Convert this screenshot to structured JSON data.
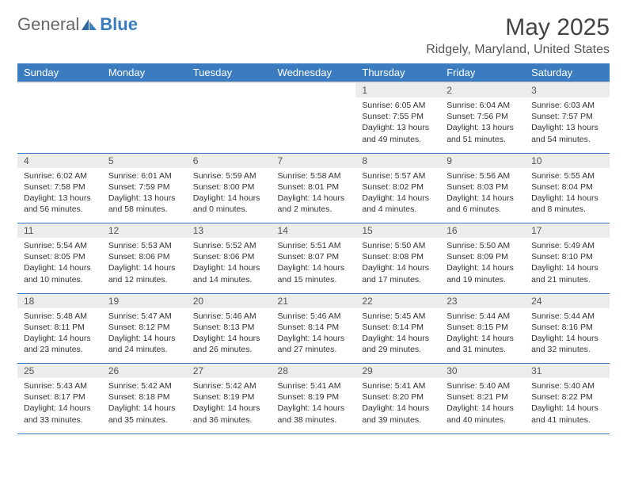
{
  "logo": {
    "general": "General",
    "blue": "Blue"
  },
  "title": "May 2025",
  "location": "Ridgely, Maryland, United States",
  "day_headers": [
    "Sunday",
    "Monday",
    "Tuesday",
    "Wednesday",
    "Thursday",
    "Friday",
    "Saturday"
  ],
  "colors": {
    "header_bg": "#3a7cbf",
    "header_fg": "#ffffff",
    "daynum_bg": "#ececec",
    "row_border": "#3a7cbf",
    "text": "#333333",
    "background": "#ffffff"
  },
  "weeks": [
    {
      "nums": [
        "",
        "",
        "",
        "",
        "1",
        "2",
        "3"
      ],
      "cells": [
        null,
        null,
        null,
        null,
        {
          "sunrise": "6:05 AM",
          "sunset": "7:55 PM",
          "dl_h": 13,
          "dl_m": 49
        },
        {
          "sunrise": "6:04 AM",
          "sunset": "7:56 PM",
          "dl_h": 13,
          "dl_m": 51
        },
        {
          "sunrise": "6:03 AM",
          "sunset": "7:57 PM",
          "dl_h": 13,
          "dl_m": 54
        }
      ]
    },
    {
      "nums": [
        "4",
        "5",
        "6",
        "7",
        "8",
        "9",
        "10"
      ],
      "cells": [
        {
          "sunrise": "6:02 AM",
          "sunset": "7:58 PM",
          "dl_h": 13,
          "dl_m": 56
        },
        {
          "sunrise": "6:01 AM",
          "sunset": "7:59 PM",
          "dl_h": 13,
          "dl_m": 58
        },
        {
          "sunrise": "5:59 AM",
          "sunset": "8:00 PM",
          "dl_h": 14,
          "dl_m": 0
        },
        {
          "sunrise": "5:58 AM",
          "sunset": "8:01 PM",
          "dl_h": 14,
          "dl_m": 2
        },
        {
          "sunrise": "5:57 AM",
          "sunset": "8:02 PM",
          "dl_h": 14,
          "dl_m": 4
        },
        {
          "sunrise": "5:56 AM",
          "sunset": "8:03 PM",
          "dl_h": 14,
          "dl_m": 6
        },
        {
          "sunrise": "5:55 AM",
          "sunset": "8:04 PM",
          "dl_h": 14,
          "dl_m": 8
        }
      ]
    },
    {
      "nums": [
        "11",
        "12",
        "13",
        "14",
        "15",
        "16",
        "17"
      ],
      "cells": [
        {
          "sunrise": "5:54 AM",
          "sunset": "8:05 PM",
          "dl_h": 14,
          "dl_m": 10
        },
        {
          "sunrise": "5:53 AM",
          "sunset": "8:06 PM",
          "dl_h": 14,
          "dl_m": 12
        },
        {
          "sunrise": "5:52 AM",
          "sunset": "8:06 PM",
          "dl_h": 14,
          "dl_m": 14
        },
        {
          "sunrise": "5:51 AM",
          "sunset": "8:07 PM",
          "dl_h": 14,
          "dl_m": 15
        },
        {
          "sunrise": "5:50 AM",
          "sunset": "8:08 PM",
          "dl_h": 14,
          "dl_m": 17
        },
        {
          "sunrise": "5:50 AM",
          "sunset": "8:09 PM",
          "dl_h": 14,
          "dl_m": 19
        },
        {
          "sunrise": "5:49 AM",
          "sunset": "8:10 PM",
          "dl_h": 14,
          "dl_m": 21
        }
      ]
    },
    {
      "nums": [
        "18",
        "19",
        "20",
        "21",
        "22",
        "23",
        "24"
      ],
      "cells": [
        {
          "sunrise": "5:48 AM",
          "sunset": "8:11 PM",
          "dl_h": 14,
          "dl_m": 23
        },
        {
          "sunrise": "5:47 AM",
          "sunset": "8:12 PM",
          "dl_h": 14,
          "dl_m": 24
        },
        {
          "sunrise": "5:46 AM",
          "sunset": "8:13 PM",
          "dl_h": 14,
          "dl_m": 26
        },
        {
          "sunrise": "5:46 AM",
          "sunset": "8:14 PM",
          "dl_h": 14,
          "dl_m": 27
        },
        {
          "sunrise": "5:45 AM",
          "sunset": "8:14 PM",
          "dl_h": 14,
          "dl_m": 29
        },
        {
          "sunrise": "5:44 AM",
          "sunset": "8:15 PM",
          "dl_h": 14,
          "dl_m": 31
        },
        {
          "sunrise": "5:44 AM",
          "sunset": "8:16 PM",
          "dl_h": 14,
          "dl_m": 32
        }
      ]
    },
    {
      "nums": [
        "25",
        "26",
        "27",
        "28",
        "29",
        "30",
        "31"
      ],
      "cells": [
        {
          "sunrise": "5:43 AM",
          "sunset": "8:17 PM",
          "dl_h": 14,
          "dl_m": 33
        },
        {
          "sunrise": "5:42 AM",
          "sunset": "8:18 PM",
          "dl_h": 14,
          "dl_m": 35
        },
        {
          "sunrise": "5:42 AM",
          "sunset": "8:19 PM",
          "dl_h": 14,
          "dl_m": 36
        },
        {
          "sunrise": "5:41 AM",
          "sunset": "8:19 PM",
          "dl_h": 14,
          "dl_m": 38
        },
        {
          "sunrise": "5:41 AM",
          "sunset": "8:20 PM",
          "dl_h": 14,
          "dl_m": 39
        },
        {
          "sunrise": "5:40 AM",
          "sunset": "8:21 PM",
          "dl_h": 14,
          "dl_m": 40
        },
        {
          "sunrise": "5:40 AM",
          "sunset": "8:22 PM",
          "dl_h": 14,
          "dl_m": 41
        }
      ]
    }
  ],
  "labels": {
    "sunrise": "Sunrise: ",
    "sunset": "Sunset: ",
    "daylight_a": "Daylight: ",
    "hours": " hours",
    "and": "and ",
    "minutes": " minutes."
  }
}
